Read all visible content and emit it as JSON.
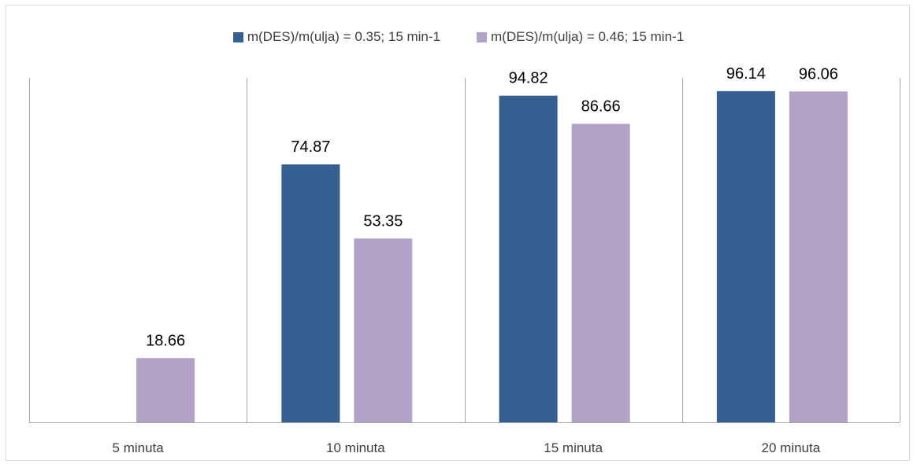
{
  "chart_data": {
    "type": "bar",
    "categories": [
      "5 minuta",
      "10 minuta",
      "15 minuta",
      "20 minuta"
    ],
    "series": [
      {
        "name": "m(DES)/m(ulja) = 0.35; 15 min-1",
        "color": "#355f91",
        "values": [
          null,
          74.87,
          94.82,
          96.14
        ],
        "labels": [
          "",
          "74.87",
          "94.82",
          "96.14"
        ]
      },
      {
        "name": "m(DES)/m(ulja) = 0.46; 15 min-1",
        "color": "#b3a2c7",
        "values": [
          18.66,
          53.35,
          86.66,
          96.06
        ],
        "labels": [
          "18.66",
          "53.35",
          "86.66",
          "96.06"
        ]
      }
    ],
    "ylim": [
      0,
      100
    ],
    "grid": false,
    "category_separators": true,
    "legend_position": "top"
  }
}
